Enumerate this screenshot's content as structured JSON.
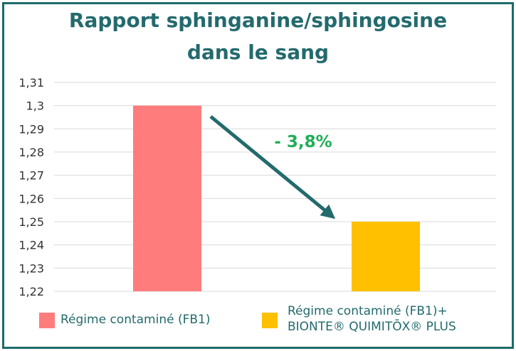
{
  "chart_data": {
    "type": "bar",
    "title": [
      "Rapport sphinganine/sphingosine",
      "dans le sang"
    ],
    "categories": [
      "Régime contaminé (FB1)",
      "Régime contaminé (FB1)+ BIONTE® QUIMITŌX® PLUS"
    ],
    "values": [
      1.3,
      1.25
    ],
    "colors": [
      "#ff7c7c",
      "#ffc000"
    ],
    "ylim": [
      1.22,
      1.31
    ],
    "yticks": [
      "1,31",
      "1,3",
      "1,29",
      "1,28",
      "1,27",
      "1,26",
      "1,25",
      "1,24",
      "1,23",
      "1,22"
    ],
    "grid": true,
    "legend": {
      "placement": "bottom",
      "items": [
        {
          "lines": [
            "Régime contaminé (FB1)"
          ],
          "color": "#ff7c7c"
        },
        {
          "lines": [
            "Régime contaminé (FB1)+",
            "BIONTE® QUIMITŌX® PLUS"
          ],
          "color": "#ffc000"
        }
      ]
    },
    "annotation": {
      "text": "- 3,8%",
      "color": "#1fae57"
    }
  },
  "colors": {
    "frame": "#1d6b6b",
    "title": "#236a6d",
    "arrow": "#236a6d",
    "axis_text": "#333333",
    "grid": "#d9d9d9"
  }
}
